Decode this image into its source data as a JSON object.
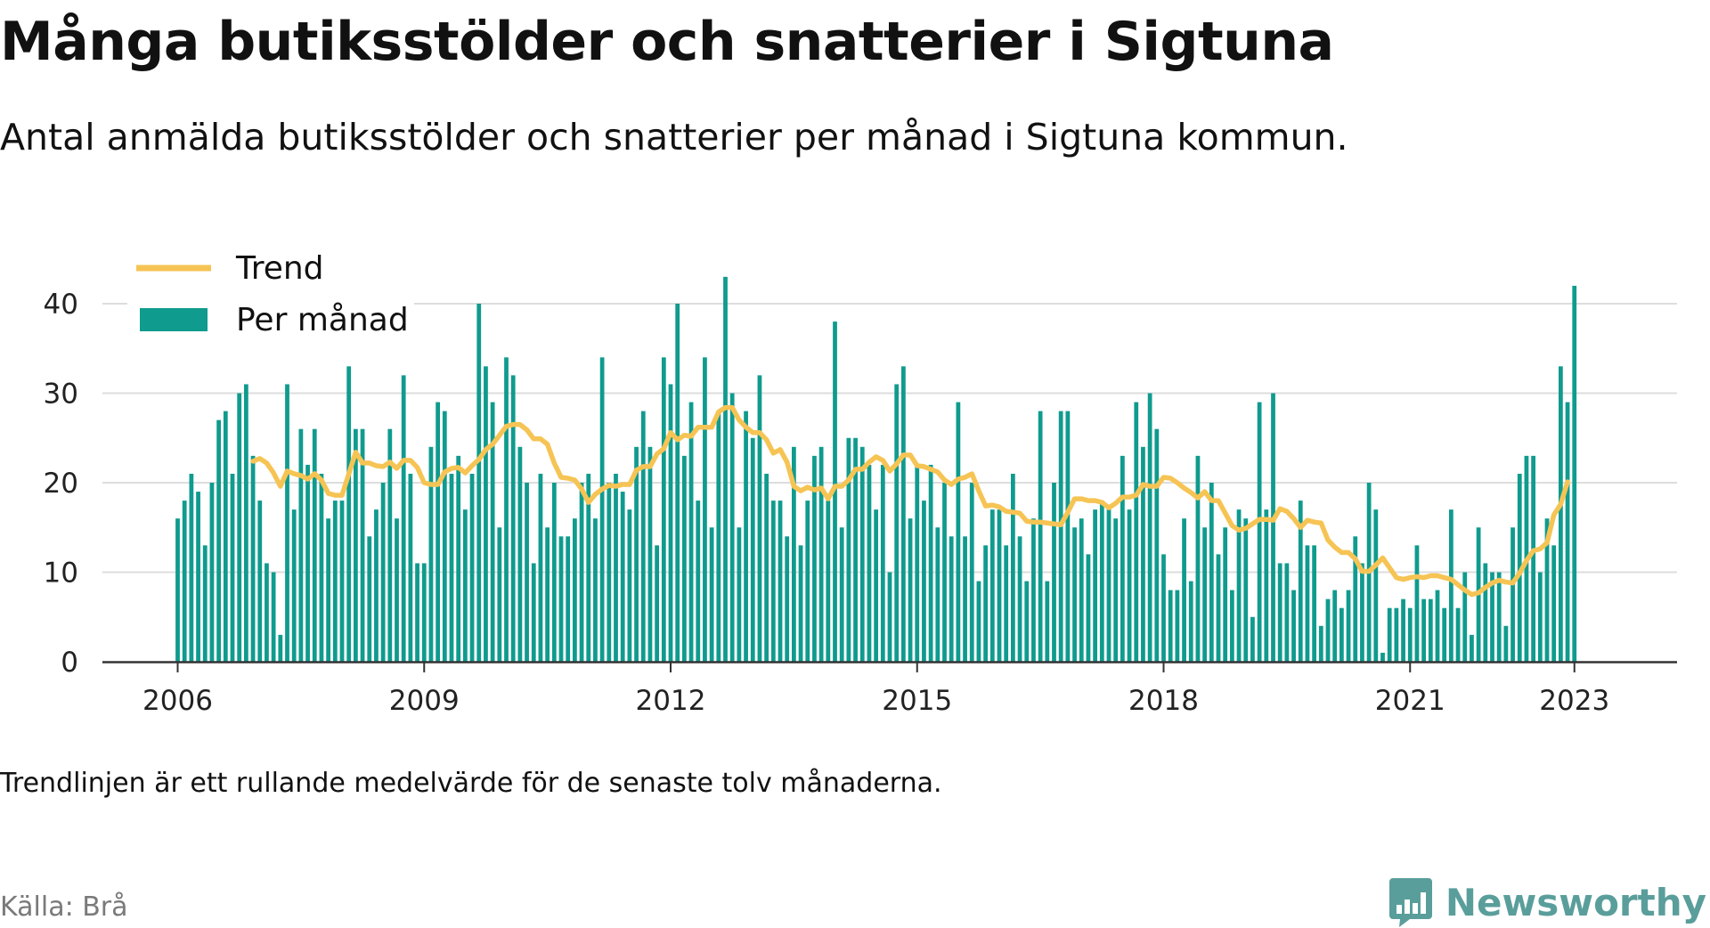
{
  "header": {
    "title": "Många butiksstölder och snatterier i Sigtuna",
    "subtitle": "Antal anmälda butiksstölder och snatterier per månad i Sigtuna kommun."
  },
  "footer": {
    "note": "Trendlinjen är ett rullande medelvärde för de senaste tolv månaderna.",
    "source": "Källa: Brå",
    "brand": "Newsworthy"
  },
  "colors": {
    "bars": "#0f9b8e",
    "trend": "#f6c454",
    "grid": "#dddddd",
    "brand": "#5a9e9b"
  },
  "icons": {
    "brand_logo": "bar-chart-speech-bubble-icon"
  },
  "chart_data": {
    "type": "bar",
    "x_start": "2006-01",
    "x_interval": "month",
    "xticks": [
      "2006",
      "2009",
      "2012",
      "2015",
      "2018",
      "2021",
      "2023"
    ],
    "yticks": [
      0,
      10,
      20,
      30,
      40
    ],
    "ylim": [
      0,
      43
    ],
    "grid": "horizontal",
    "legend": {
      "position": "top-left"
    },
    "series": [
      {
        "name": "Per månad",
        "style": "bar",
        "values": [
          16,
          18,
          21,
          19,
          13,
          20,
          27,
          28,
          21,
          30,
          31,
          23,
          18,
          11,
          10,
          3,
          31,
          17,
          26,
          22,
          26,
          21,
          16,
          18,
          18,
          33,
          26,
          26,
          14,
          17,
          20,
          26,
          16,
          32,
          21,
          11,
          11,
          24,
          29,
          28,
          21,
          23,
          17,
          21,
          40,
          33,
          29,
          15,
          34,
          32,
          24,
          20,
          11,
          21,
          15,
          20,
          14,
          14,
          16,
          20,
          21,
          16,
          34,
          20,
          21,
          19,
          17,
          24,
          28,
          24,
          13,
          34,
          31,
          40,
          23,
          29,
          18,
          34,
          15,
          28,
          43,
          30,
          15,
          28,
          25,
          32,
          21,
          18,
          18,
          14,
          24,
          13,
          18,
          23,
          24,
          18,
          38,
          15,
          25,
          25,
          24,
          22,
          17,
          22,
          10,
          31,
          33,
          16,
          22,
          18,
          22,
          15,
          20,
          14,
          29,
          14,
          20,
          9,
          13,
          17,
          17,
          13,
          21,
          14,
          9,
          16,
          28,
          9,
          20,
          28,
          28,
          15,
          16,
          12,
          17,
          18,
          17,
          16,
          23,
          17,
          29,
          24,
          30,
          26,
          12,
          8,
          8,
          16,
          9,
          23,
          15,
          20,
          12,
          15,
          8,
          17,
          16,
          5,
          29,
          17,
          30,
          11,
          11,
          8,
          18,
          13,
          13,
          4,
          7,
          8,
          6,
          8,
          14,
          11,
          20,
          17,
          1,
          6,
          6,
          7,
          6,
          13,
          7,
          7,
          8,
          6,
          17,
          6,
          10,
          3,
          15,
          11,
          10,
          10,
          4,
          15,
          21,
          23,
          23,
          10,
          16,
          13,
          33,
          29,
          42
        ]
      },
      {
        "name": "Trend",
        "style": "line",
        "start_index": 11,
        "values": [
          22.4,
          22.7,
          22.2,
          21.1,
          19.6,
          21.3,
          21.0,
          20.8,
          20.4,
          21.0,
          20.3,
          18.8,
          18.6,
          18.6,
          21.0,
          23.4,
          22.2,
          22.2,
          21.9,
          21.8,
          22.3,
          21.6,
          22.5,
          22.5,
          21.7,
          20.0,
          19.8,
          19.8,
          21.2,
          21.6,
          21.7,
          21.1,
          21.9,
          22.6,
          23.7,
          24.3,
          25.3,
          26.3,
          26.5,
          26.5,
          25.9,
          24.9,
          24.9,
          24.3,
          22.2,
          20.6,
          20.5,
          20.3,
          19.3,
          17.8,
          18.7,
          19.3,
          19.7,
          19.6,
          19.8,
          19.8,
          21.4,
          21.8,
          21.8,
          23.2,
          23.8,
          25.6,
          24.8,
          25.3,
          25.2,
          26.2,
          26.2,
          26.2,
          27.9,
          28.4,
          28.4,
          27.0,
          26.2,
          25.6,
          25.6,
          24.8,
          23.3,
          23.7,
          22.3,
          19.6,
          19.1,
          19.5,
          19.2,
          19.4,
          18.2,
          19.6,
          19.6,
          20.3,
          21.5,
          21.5,
          22.3,
          22.9,
          22.5,
          21.3,
          22.1,
          23.1,
          23.1,
          21.9,
          21.8,
          21.5,
          21.2,
          20.3,
          19.8,
          20.4,
          20.6,
          21.0,
          19.1,
          17.4,
          17.5,
          17.3,
          16.8,
          16.7,
          16.6,
          15.7,
          15.6,
          15.6,
          15.5,
          15.4,
          15.3,
          16.7,
          18.2,
          18.2,
          18.0,
          18.0,
          17.8,
          17.2,
          17.7,
          18.4,
          18.4,
          18.6,
          19.8,
          19.6,
          19.6,
          20.6,
          20.5,
          20.0,
          19.4,
          18.9,
          18.3,
          19.0,
          18.0,
          18.0,
          16.6,
          15.2,
          14.7,
          14.9,
          15.4,
          15.9,
          15.9,
          15.8,
          17.1,
          16.8,
          16.0,
          15.0,
          15.8,
          15.6,
          15.5,
          13.6,
          12.8,
          12.2,
          12.2,
          11.5,
          10.1,
          10.1,
          10.8,
          11.6,
          10.5,
          9.4,
          9.2,
          9.4,
          9.5,
          9.4,
          9.6,
          9.6,
          9.4,
          9.2,
          8.6,
          8.0,
          7.5,
          7.7,
          8.3,
          8.8,
          9.1,
          8.9,
          8.8,
          9.9,
          11.3,
          12.4,
          12.6,
          13.3,
          16.4,
          17.6,
          20.1
        ]
      }
    ]
  }
}
